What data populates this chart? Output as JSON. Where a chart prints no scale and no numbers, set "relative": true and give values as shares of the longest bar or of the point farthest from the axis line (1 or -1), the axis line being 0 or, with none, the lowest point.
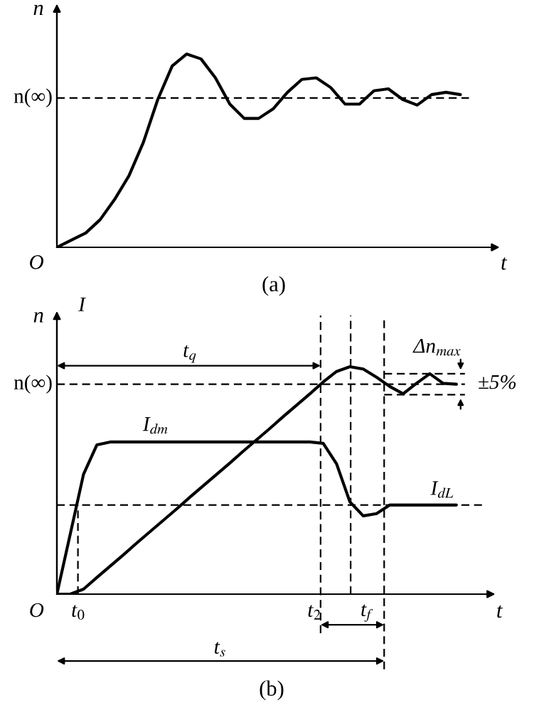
{
  "chart_data": [
    {
      "type": "line",
      "title": "(a)",
      "xlabel": "t",
      "ylabel": "n",
      "relative": true,
      "categories": [
        null,
        null,
        null,
        null,
        null,
        null,
        null,
        null,
        null,
        null,
        null,
        null,
        null,
        null,
        null,
        null,
        null,
        null,
        null,
        null,
        null,
        null,
        null,
        null,
        null,
        null,
        null,
        null,
        null
      ],
      "series": [
        {
          "color": "#000000",
          "values": [
            0,
            0.037,
            0.074,
            0.143,
            0.247,
            0.37,
            0.543,
            0.765,
            0.938,
            1,
            0.975,
            0.877,
            0.741,
            0.667,
            0.667,
            0.716,
            0.802,
            0.869,
            0.877,
            0.827,
            0.741,
            0.741,
            0.81,
            0.82,
            0.765,
            0.736,
            0.79,
            0.802,
            0.79
          ]
        }
      ],
      "ref_lines": [
        {
          "axis": "y",
          "value": 0.773,
          "label": "n(∞)",
          "line_style": "dashed"
        }
      ],
      "annotations": [
        "O"
      ]
    },
    {
      "type": "line",
      "title": "(b)",
      "xlabel": "t",
      "ylabel": "n",
      "relative": true,
      "categories": [
        null,
        null,
        null,
        null,
        null,
        null,
        null,
        null,
        null,
        null,
        null,
        null,
        null,
        null,
        null,
        null,
        null,
        null,
        null,
        null,
        null,
        null,
        null,
        null,
        null,
        null,
        null,
        null,
        null,
        null,
        null
      ],
      "series": [
        {
          "color": "#000000",
          "values": [
            0,
            0,
            0.022,
            0.073,
            0.123,
            0.173,
            0.225,
            0.275,
            0.325,
            0.375,
            0.427,
            0.477,
            0.527,
            0.577,
            0.629,
            0.679,
            0.729,
            0.781,
            0.831,
            0.881,
            0.933,
            0.979,
            1,
            0.99,
            0.954,
            0.913,
            0.881,
            0.927,
            0.969,
            0.927,
            0.923
          ]
        },
        {
          "color": "#000000",
          "values": [
            0,
            0.263,
            0.527,
            0.656,
            0.669,
            0.669,
            0.669,
            0.669,
            0.669,
            0.669,
            0.669,
            0.669,
            0.669,
            0.669,
            0.669,
            0.669,
            0.669,
            0.669,
            0.669,
            0.669,
            0.663,
            0.573,
            0.406,
            0.344,
            0.354,
            0.392,
            0.392,
            0.392,
            0.392,
            0.392,
            0.392
          ]
        }
      ],
      "ref_lines": [
        {
          "axis": "y",
          "value": 0.923,
          "label": "n(∞)",
          "line_style": "dashed"
        },
        {
          "axis": "y",
          "value": 0.392,
          "label": null,
          "line_style": "dashed"
        },
        {
          "axis": "y",
          "value": 0.969,
          "label": null,
          "line_style": "dashed"
        },
        {
          "axis": "y",
          "value": 0.877,
          "label": null,
          "line_style": "dashed"
        }
      ],
      "annotations": [
        "I",
        "O",
        "I$_{dm}$",
        "I$_{dL}$",
        "Δn$_{max}$",
        "t$_{0}$",
        "t$_{2}$",
        "t$_{q}$",
        "t$_{s}$",
        "t$_{f}$",
        "±5%"
      ]
    }
  ]
}
